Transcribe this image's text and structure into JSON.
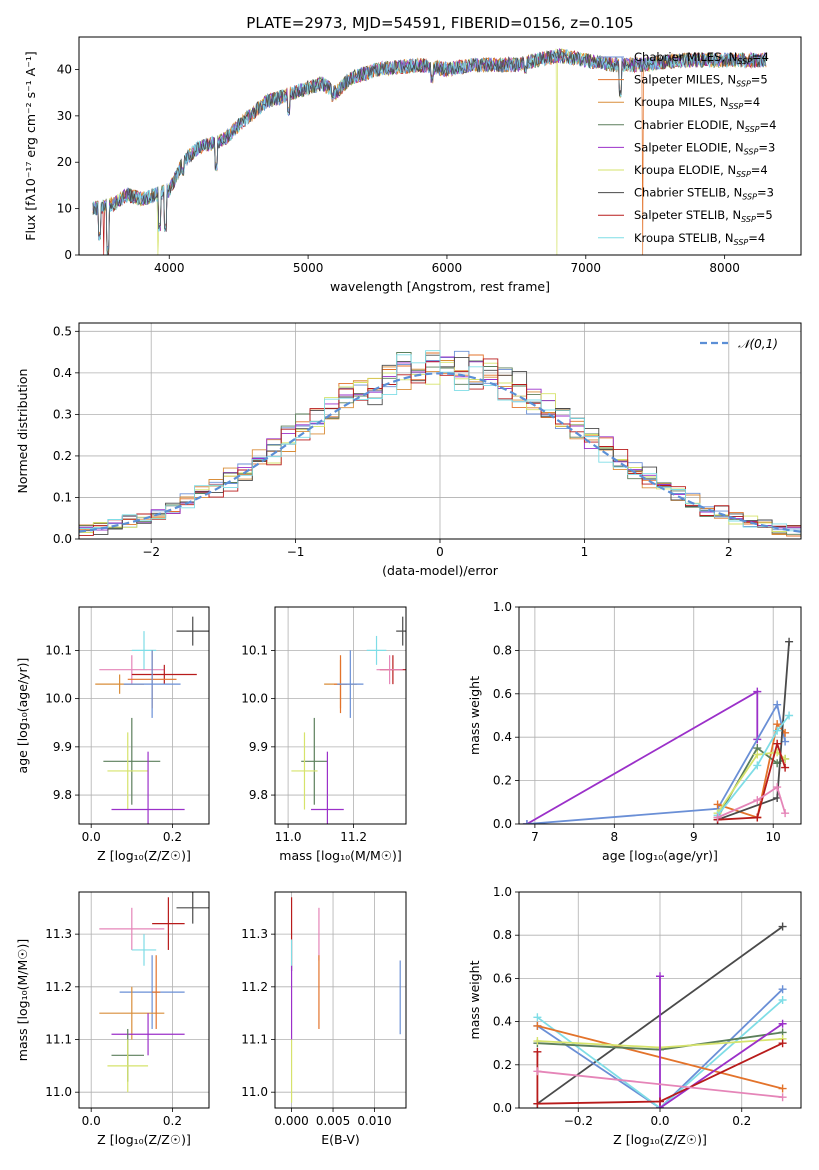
{
  "title": "PLATE=2973, MJD=54591, FIBERID=0156, z=0.105",
  "colors": {
    "Chabrier MILES": "#6a8fd6",
    "Salpeter MILES": "#e3732b",
    "Kroupa MILES": "#d98e3a",
    "Chabrier ELODIE": "#5b7f5b",
    "Salpeter ELODIE": "#9b30c9",
    "Kroupa ELODIE": "#d6e36b",
    "Chabrier STELIB": "#4a4a4a",
    "Salpeter STELIB": "#b81b1b",
    "Kroupa STELIB": "#7fdde6",
    "pink": "#e585b8",
    "normal": "#5b8fd6"
  },
  "chart_data": [
    {
      "id": "spectrum",
      "type": "line",
      "xlabel": "wavelength [Angstrom, rest frame]",
      "ylabel": "Flux [f$_\\lambda$10$^{-17}$ erg cm$^{-2}$ s$^{-1}$ A$^{-1}$]",
      "ylabel_display": "Flux [fλ10⁻¹⁷ erg cm⁻² s⁻¹ A⁻¹]",
      "xlim": [
        3350,
        8550
      ],
      "ylim": [
        0,
        47
      ],
      "xticks": [
        4000,
        5000,
        6000,
        7000,
        8000
      ],
      "yticks": [
        0,
        10,
        20,
        30,
        40
      ],
      "legend_position": "upper-right",
      "legend": [
        {
          "label": "Chabrier MILES, N",
          "sub": "SSP",
          "suffix": "=4",
          "color": "Chabrier MILES"
        },
        {
          "label": "Salpeter MILES, N",
          "sub": "SSP",
          "suffix": "=5",
          "color": "Salpeter MILES"
        },
        {
          "label": "Kroupa MILES, N",
          "sub": "SSP",
          "suffix": "=4",
          "color": "Kroupa MILES"
        },
        {
          "label": "Chabrier ELODIE, N",
          "sub": "SSP",
          "suffix": "=4",
          "color": "Chabrier ELODIE"
        },
        {
          "label": "Salpeter ELODIE, N",
          "sub": "SSP",
          "suffix": "=3",
          "color": "Salpeter ELODIE"
        },
        {
          "label": "Kroupa ELODIE, N",
          "sub": "SSP",
          "suffix": "=4",
          "color": "Kroupa ELODIE"
        },
        {
          "label": "Chabrier STELIB, N",
          "sub": "SSP",
          "suffix": "=3",
          "color": "Chabrier STELIB"
        },
        {
          "label": "Salpeter STELIB, N",
          "sub": "SSP",
          "suffix": "=5",
          "color": "Salpeter STELIB"
        },
        {
          "label": "Kroupa STELIB, N",
          "sub": "SSP",
          "suffix": "=4",
          "color": "Kroupa STELIB"
        }
      ],
      "continuum": [
        [
          3450,
          10
        ],
        [
          3600,
          11
        ],
        [
          3700,
          13
        ],
        [
          3800,
          12
        ],
        [
          3900,
          13
        ],
        [
          4000,
          14
        ],
        [
          4100,
          20
        ],
        [
          4200,
          23
        ],
        [
          4300,
          24
        ],
        [
          4400,
          25
        ],
        [
          4500,
          28
        ],
        [
          4700,
          33
        ],
        [
          4900,
          35
        ],
        [
          5100,
          37
        ],
        [
          5200,
          35
        ],
        [
          5300,
          38
        ],
        [
          5500,
          40
        ],
        [
          5800,
          41
        ],
        [
          6000,
          40
        ],
        [
          6200,
          41
        ],
        [
          6500,
          41
        ],
        [
          6800,
          43
        ],
        [
          7000,
          42
        ],
        [
          7200,
          41
        ],
        [
          7400,
          41
        ],
        [
          7700,
          42
        ],
        [
          8000,
          42
        ],
        [
          8300,
          42
        ]
      ],
      "dips": [
        [
          3500,
          3
        ],
        [
          3560,
          0
        ],
        [
          3930,
          5
        ],
        [
          3970,
          5
        ],
        [
          4100,
          17
        ],
        [
          4340,
          18
        ],
        [
          4860,
          30
        ],
        [
          5175,
          33
        ],
        [
          5890,
          37
        ],
        [
          6563,
          39
        ],
        [
          7250,
          34
        ]
      ],
      "drops_to_zero": [
        {
          "series": "Kroupa ELODIE",
          "x": 3920
        },
        {
          "series": "Kroupa ELODIE",
          "x": 6790
        },
        {
          "series": "Salpeter STELIB",
          "x": 3530
        },
        {
          "series": "Salpeter MILES",
          "x": 7410
        }
      ]
    },
    {
      "id": "residuals",
      "type": "step-histogram",
      "xlabel": "(data-model)/error",
      "ylabel": "Normed distribution",
      "xlim": [
        -2.5,
        2.5
      ],
      "ylim": [
        0,
        0.52
      ],
      "xticks": [
        -2,
        -1,
        0,
        1,
        2
      ],
      "xtick_labels": [
        "−2",
        "−1",
        "0",
        "1",
        "2"
      ],
      "yticks": [
        0.0,
        0.1,
        0.2,
        0.3,
        0.4,
        0.5
      ],
      "bin_width": 0.1,
      "legend": [
        {
          "label": "𝒩(0,1)",
          "style": "dashed",
          "color": "normal"
        }
      ],
      "legend_position": "upper-right"
    },
    {
      "id": "age_vs_Z",
      "type": "errorbar",
      "xlabel": "Z [log₁₀(Z/Z☉)]",
      "ylabel": "age  [log₁₀(age/yr)]",
      "xlim": [
        -0.03,
        0.29
      ],
      "ylim": [
        9.74,
        10.19
      ],
      "xticks": [
        0.0,
        0.2
      ],
      "yticks": [
        9.8,
        9.9,
        10.0,
        10.1
      ],
      "points": [
        {
          "s": "Chabrier STELIB",
          "x": 0.25,
          "xe": 0.04,
          "y": 10.14,
          "ye": 0.03
        },
        {
          "s": "Kroupa STELIB",
          "x": 0.13,
          "xe": 0.03,
          "y": 10.1,
          "ye": 0.04
        },
        {
          "s": "pink",
          "x": 0.1,
          "xe": 0.08,
          "y": 10.06,
          "ye": 0.03
        },
        {
          "s": "Salpeter STELIB",
          "x": 0.18,
          "xe": 0.08,
          "y": 10.05,
          "ye": 0.02
        },
        {
          "s": "Salpeter MILES",
          "x": 0.15,
          "xe": 0.06,
          "y": 10.04,
          "ye": 0.06
        },
        {
          "s": "Kroupa MILES",
          "x": 0.07,
          "xe": 0.06,
          "y": 10.03,
          "ye": 0.02
        },
        {
          "s": "Chabrier MILES",
          "x": 0.15,
          "xe": 0.07,
          "y": 10.03,
          "ye": 0.07
        },
        {
          "s": "Chabrier ELODIE",
          "x": 0.1,
          "xe": 0.07,
          "y": 9.87,
          "ye": 0.09
        },
        {
          "s": "Kroupa ELODIE",
          "x": 0.09,
          "xe": 0.05,
          "y": 9.85,
          "ye": 0.08
        },
        {
          "s": "Salpeter ELODIE",
          "x": 0.14,
          "xe": 0.09,
          "y": 9.77,
          "ye": 0.12
        }
      ]
    },
    {
      "id": "age_vs_mass",
      "type": "errorbar",
      "xlabel": "mass [log₁₀(M/M☉)]",
      "xlim": [
        10.96,
        11.36
      ],
      "ylim": [
        9.74,
        10.19
      ],
      "xticks": [
        11.0,
        11.2
      ],
      "yticks": [
        9.8,
        9.9,
        10.0,
        10.1
      ],
      "points": [
        {
          "s": "Chabrier STELIB",
          "x": 11.35,
          "xe": 0.02,
          "y": 10.14,
          "ye": 0.03
        },
        {
          "s": "Kroupa STELIB",
          "x": 11.27,
          "xe": 0.03,
          "y": 10.1,
          "ye": 0.03
        },
        {
          "s": "Salpeter STELIB",
          "x": 11.32,
          "xe": 0.04,
          "y": 10.06,
          "ye": 0.03
        },
        {
          "s": "pink",
          "x": 11.31,
          "xe": 0.04,
          "y": 10.06,
          "ye": 0.03
        },
        {
          "s": "Kroupa MILES",
          "x": 11.16,
          "xe": 0.05,
          "y": 10.03,
          "ye": 0.05
        },
        {
          "s": "Salpeter MILES",
          "x": 11.16,
          "xe": 0.02,
          "y": 10.03,
          "ye": 0.06
        },
        {
          "s": "Chabrier MILES",
          "x": 11.19,
          "xe": 0.04,
          "y": 10.03,
          "ye": 0.07
        },
        {
          "s": "Chabrier ELODIE",
          "x": 11.08,
          "xe": 0.04,
          "y": 9.87,
          "ye": 0.09
        },
        {
          "s": "Kroupa ELODIE",
          "x": 11.05,
          "xe": 0.04,
          "y": 9.85,
          "ye": 0.08
        },
        {
          "s": "Salpeter ELODIE",
          "x": 11.12,
          "xe": 0.05,
          "y": 9.77,
          "ye": 0.12
        }
      ]
    },
    {
      "id": "weight_vs_age",
      "type": "line",
      "xlabel": "age  [log₁₀(age/yr)]",
      "ylabel": "mass weight",
      "xlim": [
        6.8,
        10.35
      ],
      "ylim": [
        0,
        1.0
      ],
      "xticks": [
        7,
        8,
        9,
        10
      ],
      "yticks": [
        0.0,
        0.2,
        0.4,
        0.6,
        0.8,
        1.0
      ],
      "series": [
        {
          "s": "Salpeter ELODIE",
          "x": [
            6.9,
            9.8,
            9.8
          ],
          "y": [
            0.0,
            0.61,
            0.39
          ]
        },
        {
          "s": "Chabrier MILES",
          "x": [
            6.9,
            9.3,
            10.05,
            10.15
          ],
          "y": [
            0.0,
            0.07,
            0.55,
            0.38
          ]
        },
        {
          "s": "Salpeter MILES",
          "x": [
            9.3,
            9.8,
            10.05,
            10.15
          ],
          "y": [
            0.09,
            0.03,
            0.46,
            0.42
          ]
        },
        {
          "s": "Chabrier ELODIE",
          "x": [
            9.3,
            9.8,
            10.05,
            10.15
          ],
          "y": [
            0.03,
            0.35,
            0.28,
            0.3
          ]
        },
        {
          "s": "Kroupa ELODIE",
          "x": [
            9.3,
            9.8,
            10.05,
            10.15
          ],
          "y": [
            0.05,
            0.32,
            0.33,
            0.3
          ]
        },
        {
          "s": "Chabrier STELIB",
          "x": [
            9.3,
            10.05,
            10.2
          ],
          "y": [
            0.02,
            0.12,
            0.84
          ]
        },
        {
          "s": "Salpeter STELIB",
          "x": [
            9.3,
            9.8,
            10.05,
            10.15
          ],
          "y": [
            0.02,
            0.03,
            0.37,
            0.26
          ]
        },
        {
          "s": "Kroupa STELIB",
          "x": [
            9.3,
            9.8,
            10.05,
            10.2
          ],
          "y": [
            0.04,
            0.27,
            0.43,
            0.5
          ]
        },
        {
          "s": "pink",
          "x": [
            9.3,
            9.8,
            10.05,
            10.15
          ],
          "y": [
            0.03,
            0.11,
            0.17,
            0.05
          ]
        }
      ]
    },
    {
      "id": "mass_vs_Z",
      "type": "errorbar",
      "xlabel": "Z [log₁₀(Z/Z☉)]",
      "ylabel": "mass [log₁₀(M/M☉)]",
      "xlim": [
        -0.03,
        0.29
      ],
      "ylim": [
        10.97,
        11.38
      ],
      "xticks": [
        0.0,
        0.2
      ],
      "yticks": [
        11.0,
        11.1,
        11.2,
        11.3
      ],
      "points": [
        {
          "s": "Chabrier STELIB",
          "x": 0.25,
          "xe": 0.04,
          "y": 11.35,
          "ye": 0.03
        },
        {
          "s": "Salpeter STELIB",
          "x": 0.19,
          "xe": 0.04,
          "y": 11.32,
          "ye": 0.05
        },
        {
          "s": "pink",
          "x": 0.1,
          "xe": 0.08,
          "y": 11.31,
          "ye": 0.04
        },
        {
          "s": "Kroupa STELIB",
          "x": 0.13,
          "xe": 0.03,
          "y": 11.27,
          "ye": 0.03
        },
        {
          "s": "Chabrier MILES",
          "x": 0.15,
          "xe": 0.08,
          "y": 11.19,
          "ye": 0.07
        },
        {
          "s": "Kroupa MILES",
          "x": 0.1,
          "xe": 0.08,
          "y": 11.15,
          "ye": 0.05
        },
        {
          "s": "Salpeter MILES",
          "x": 0.16,
          "xe": 0.01,
          "y": 11.19,
          "ye": 0.07
        },
        {
          "s": "Salpeter ELODIE",
          "x": 0.14,
          "xe": 0.09,
          "y": 11.11,
          "ye": 0.04
        },
        {
          "s": "Chabrier ELODIE",
          "x": 0.09,
          "xe": 0.04,
          "y": 11.07,
          "ye": 0.05
        },
        {
          "s": "Kroupa ELODIE",
          "x": 0.09,
          "xe": 0.05,
          "y": 11.05,
          "ye": 0.05
        }
      ]
    },
    {
      "id": "mass_vs_ebv",
      "type": "errorbar",
      "xlabel": "E(B-V)",
      "xlim": [
        -0.002,
        0.0138
      ],
      "ylim": [
        10.97,
        11.38
      ],
      "xticks": [
        0.0,
        0.005,
        0.01
      ],
      "xtick_labels": [
        "0.000",
        "0.005",
        "0.010"
      ],
      "yticks": [
        11.0,
        11.1,
        11.2,
        11.3
      ],
      "points": [
        {
          "s": "Salpeter STELIB",
          "x": 0.0,
          "y": 11.3,
          "ye": 0.07
        },
        {
          "s": "Kroupa STELIB",
          "x": 0.0,
          "y": 11.26,
          "ye": 0.03
        },
        {
          "s": "Salpeter ELODIE",
          "x": 0.0,
          "y": 11.17,
          "ye": 0.07
        },
        {
          "s": "Kroupa ELODIE",
          "x": 0.0,
          "y": 11.04,
          "ye": 0.06
        },
        {
          "s": "pink",
          "x": 0.0033,
          "y": 11.3,
          "ye": 0.05
        },
        {
          "s": "Salpeter MILES",
          "x": 0.0033,
          "y": 11.19,
          "ye": 0.07
        },
        {
          "s": "Chabrier MILES",
          "x": 0.0131,
          "y": 11.18,
          "ye": 0.07
        }
      ]
    },
    {
      "id": "weight_vs_Z",
      "type": "line",
      "xlabel": "Z [log₁₀(Z/Z☉)]",
      "ylabel": "mass weight",
      "xlim": [
        -0.345,
        0.345
      ],
      "ylim": [
        0,
        1.0
      ],
      "xticks": [
        -0.2,
        0.0,
        0.2
      ],
      "xtick_labels": [
        "−0.2",
        "0.0",
        "0.2"
      ],
      "yticks": [
        0.0,
        0.2,
        0.4,
        0.6,
        0.8,
        1.0
      ],
      "series": [
        {
          "s": "Chabrier STELIB",
          "x": [
            -0.3,
            0.3
          ],
          "y": [
            0.02,
            0.84
          ]
        },
        {
          "s": "Chabrier MILES",
          "x": [
            -0.3,
            0.0,
            0.3
          ],
          "y": [
            0.38,
            0.0,
            0.55
          ]
        },
        {
          "s": "Kroupa STELIB",
          "x": [
            -0.3,
            0.0,
            0.3
          ],
          "y": [
            0.42,
            0.0,
            0.5
          ]
        },
        {
          "s": "Salpeter MILES",
          "x": [
            -0.3,
            0.3
          ],
          "y": [
            0.38,
            0.09
          ]
        },
        {
          "s": "Chabrier ELODIE",
          "x": [
            -0.3,
            0.0,
            0.3
          ],
          "y": [
            0.3,
            0.27,
            0.35
          ]
        },
        {
          "s": "Kroupa ELODIE",
          "x": [
            -0.3,
            0.0,
            0.3
          ],
          "y": [
            0.31,
            0.28,
            0.32
          ]
        },
        {
          "s": "Salpeter ELODIE",
          "x": [
            0.0,
            0.0,
            0.3
          ],
          "y": [
            0.61,
            0.0,
            0.39
          ]
        },
        {
          "s": "Salpeter STELIB",
          "x": [
            -0.3,
            -0.3,
            0.0,
            0.3
          ],
          "y": [
            0.26,
            0.02,
            0.03,
            0.3
          ]
        },
        {
          "s": "pink",
          "x": [
            -0.3,
            0.3
          ],
          "y": [
            0.17,
            0.05
          ]
        }
      ]
    }
  ]
}
